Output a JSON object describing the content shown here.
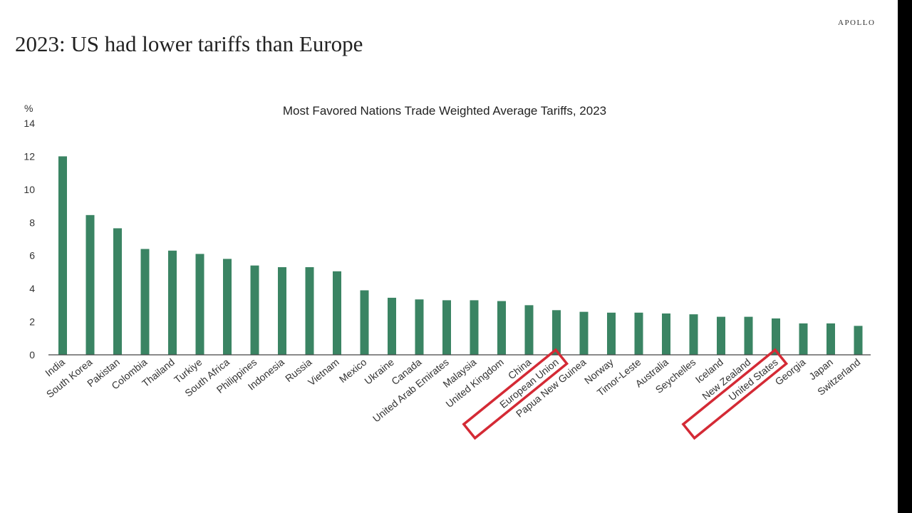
{
  "page": {
    "headline": "2023: US had lower tariffs than Europe",
    "brand": "APOLLO"
  },
  "colors": {
    "bar": "#3a8463",
    "highlight_box": "#d42a35",
    "axis": "#444444"
  },
  "chart_data": {
    "type": "bar",
    "title": "Most Favored Nations Trade Weighted Average Tariffs, 2023",
    "ylabel": "%",
    "xlabel": "",
    "ylim": [
      0,
      14
    ],
    "yticks": [
      0,
      2,
      4,
      6,
      8,
      10,
      12,
      14
    ],
    "grid": false,
    "categories": [
      "India",
      "South Korea",
      "Pakistan",
      "Colombia",
      "Thailand",
      "Turkiye",
      "South Africa",
      "Philippines",
      "Indonesia",
      "Russia",
      "Vietnam",
      "Mexico",
      "Ukraine",
      "Canada",
      "United Arab Emirates",
      "Malaysia",
      "United Kingdom",
      "China",
      "European Union",
      "Papua New Guinea",
      "Norway",
      "Timor-Leste",
      "Australia",
      "Seychelles",
      "Iceland",
      "New Zealand",
      "United States",
      "Georgia",
      "Japan",
      "Switzerland"
    ],
    "values": [
      12.0,
      8.45,
      7.65,
      6.4,
      6.3,
      6.1,
      5.8,
      5.4,
      5.3,
      5.3,
      5.05,
      3.9,
      3.45,
      3.35,
      3.3,
      3.3,
      3.25,
      3.0,
      2.7,
      2.6,
      2.55,
      2.55,
      2.5,
      2.45,
      2.3,
      2.3,
      2.2,
      1.9,
      1.9,
      1.75
    ],
    "highlighted": [
      "European Union",
      "United States"
    ]
  }
}
